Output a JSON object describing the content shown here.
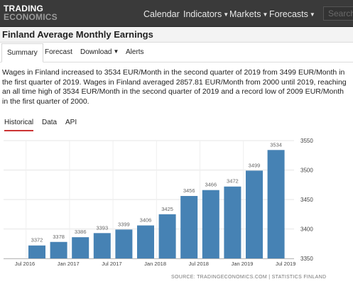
{
  "header": {
    "logo_line1": "TRADING",
    "logo_line2": "ECONOMICS",
    "nav": [
      {
        "label": "Calendar",
        "dropdown": false
      },
      {
        "label": "Indicators",
        "dropdown": true
      },
      {
        "label": "Markets",
        "dropdown": true
      },
      {
        "label": "Forecasts",
        "dropdown": true
      }
    ],
    "search_placeholder": "Search"
  },
  "page_title": "Finland Average Monthly Earnings",
  "tabs": [
    {
      "label": "Summary",
      "active": true
    },
    {
      "label": "Forecast",
      "active": false
    },
    {
      "label": "Download",
      "active": false,
      "dropdown": true
    },
    {
      "label": "Alerts",
      "active": false
    }
  ],
  "description": "Wages in Finland increased to 3534 EUR/Month in the second quarter of 2019 from 3499 EUR/Month in the first quarter of 2019. Wages in Finland averaged 2857.81 EUR/Month from 2000 until 2019, reaching an all time high of 3534 EUR/Month in the second quarter of 2019 and a record low of 2009 EUR/Month in the first quarter of 2000.",
  "chart_tabs": [
    {
      "label": "Historical",
      "active": true
    },
    {
      "label": "Data",
      "active": false
    },
    {
      "label": "API",
      "active": false
    }
  ],
  "source": "SOURCE: TRADINGECONOMICS.COM | STATISTICS FINLAND",
  "colors": {
    "bar": "#4682b4",
    "navbar": "#3a3a3a",
    "active_tab_underline": "#cc3333"
  },
  "chart_data": {
    "type": "bar",
    "categories": [
      "Q3 2016",
      "Q4 2016",
      "Q1 2017",
      "Q2 2017",
      "Q3 2017",
      "Q4 2017",
      "Q1 2018",
      "Q2 2018",
      "Q3 2018",
      "Q4 2018",
      "Q1 2019",
      "Q2 2019"
    ],
    "values": [
      3372,
      3378,
      3386,
      3393,
      3399,
      3406,
      3425,
      3456,
      3466,
      3472,
      3499,
      3534
    ],
    "x_tick_labels": [
      "Jul 2016",
      "Jan 2017",
      "Jul 2017",
      "Jan 2018",
      "Jul 2018",
      "Jan 2019",
      "Jul 2019"
    ],
    "y_ticks": [
      3350,
      3400,
      3450,
      3500,
      3550
    ],
    "ylim": [
      3350,
      3550
    ],
    "y_axis_side": "right",
    "grid": true,
    "data_labels": true
  }
}
